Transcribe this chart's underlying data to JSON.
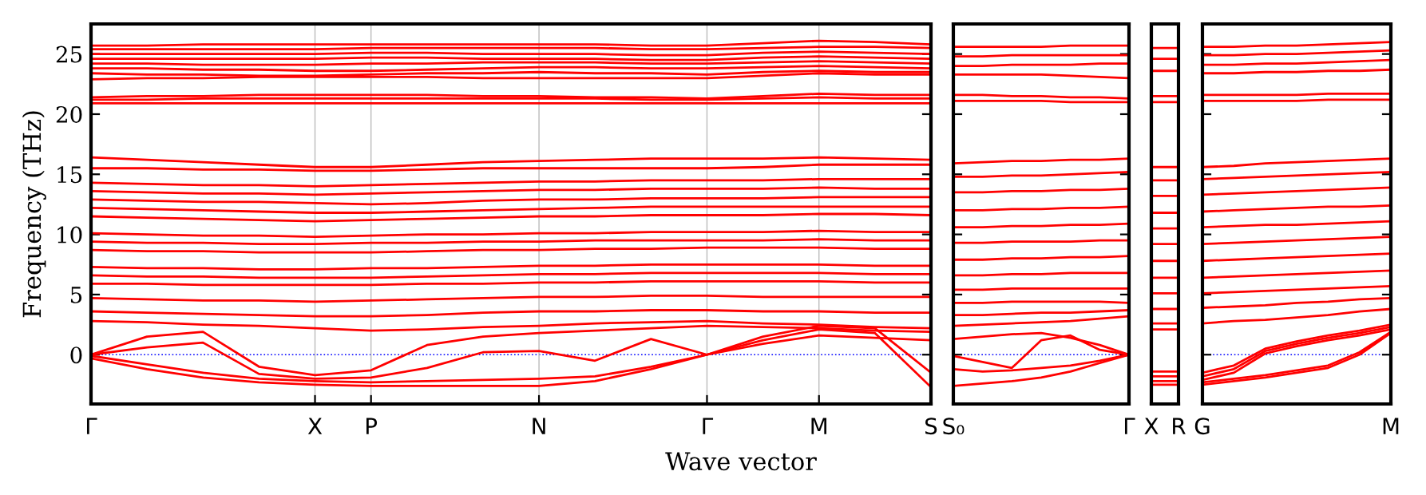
{
  "chart_data": [
    {
      "type": "line",
      "ylabel": "Frequency (THz)",
      "xlabel": "Wave vector",
      "ylim": [
        -4.1,
        27.5
      ],
      "yticks": [
        0,
        5,
        10,
        15,
        20,
        25
      ],
      "categories": [
        "Γ",
        null,
        null,
        null,
        "X",
        "P",
        null,
        null,
        "N",
        null,
        null,
        "Γ",
        null,
        "M",
        null,
        "S"
      ],
      "grid": "x",
      "line_style": "solid",
      "marker": "none",
      "ref_lines": [
        {
          "axis": "y",
          "value": 0,
          "color": "#0000ff",
          "line_style": "dotted"
        }
      ],
      "series": [
        {
          "color": "#ff0000",
          "values": [
            25.7,
            25.7,
            25.8,
            25.8,
            25.8,
            25.8,
            25.8,
            25.8,
            25.8,
            25.8,
            25.7,
            25.7,
            25.9,
            26.1,
            26.0,
            25.8
          ]
        },
        {
          "color": "#ff0000",
          "values": [
            25.4,
            25.4,
            25.4,
            25.4,
            25.4,
            25.5,
            25.5,
            25.5,
            25.5,
            25.5,
            25.4,
            25.4,
            25.5,
            25.6,
            25.6,
            25.5
          ]
        },
        {
          "color": "#ff0000",
          "values": [
            25.0,
            25.0,
            25.0,
            25.0,
            25.0,
            25.1,
            25.1,
            25.0,
            25.0,
            25.0,
            24.9,
            24.9,
            25.1,
            25.2,
            25.1,
            25.0
          ]
        },
        {
          "color": "#ff0000",
          "values": [
            24.6,
            24.6,
            24.6,
            24.6,
            24.6,
            24.7,
            24.7,
            24.6,
            24.6,
            24.6,
            24.5,
            24.5,
            24.7,
            24.8,
            24.7,
            24.6
          ]
        },
        {
          "color": "#ff0000",
          "values": [
            24.2,
            24.2,
            24.1,
            24.1,
            24.1,
            24.2,
            24.2,
            24.3,
            24.3,
            24.3,
            24.2,
            24.2,
            24.3,
            24.4,
            24.3,
            24.2
          ]
        },
        {
          "color": "#ff0000",
          "values": [
            23.8,
            23.8,
            23.7,
            23.7,
            23.6,
            23.6,
            23.7,
            23.8,
            23.9,
            23.9,
            23.8,
            23.8,
            23.9,
            24.0,
            23.9,
            23.8
          ]
        },
        {
          "color": "#ff0000",
          "values": [
            23.4,
            23.3,
            23.3,
            23.2,
            23.2,
            23.3,
            23.4,
            23.4,
            23.5,
            23.4,
            23.4,
            23.3,
            23.5,
            23.6,
            23.5,
            23.5
          ]
        },
        {
          "color": "#ff0000",
          "values": [
            22.9,
            23.0,
            23.0,
            23.1,
            23.1,
            23.1,
            23.1,
            23.0,
            23.0,
            23.0,
            23.0,
            23.0,
            23.2,
            23.4,
            23.3,
            23.3
          ]
        },
        {
          "color": "#ff0000",
          "values": [
            21.4,
            21.5,
            21.5,
            21.6,
            21.6,
            21.6,
            21.6,
            21.5,
            21.5,
            21.4,
            21.4,
            21.3,
            21.5,
            21.7,
            21.6,
            21.6
          ]
        },
        {
          "color": "#ff0000",
          "values": [
            21.2,
            21.2,
            21.3,
            21.3,
            21.3,
            21.3,
            21.3,
            21.3,
            21.3,
            21.3,
            21.2,
            21.2,
            21.3,
            21.4,
            21.3,
            21.3
          ]
        },
        {
          "color": "#ff0000",
          "values": [
            20.9,
            20.9,
            20.9,
            20.9,
            20.9,
            20.9,
            20.9,
            20.9,
            20.9,
            20.9,
            20.9,
            20.9,
            20.9,
            20.9,
            20.9,
            20.9
          ]
        },
        {
          "color": "#ff0000",
          "values": [
            16.4,
            16.2,
            16.0,
            15.8,
            15.6,
            15.6,
            15.8,
            16.0,
            16.1,
            16.2,
            16.3,
            16.3,
            16.3,
            16.4,
            16.3,
            16.2
          ]
        },
        {
          "color": "#ff0000",
          "values": [
            15.5,
            15.5,
            15.4,
            15.4,
            15.3,
            15.3,
            15.4,
            15.5,
            15.5,
            15.5,
            15.5,
            15.5,
            15.6,
            15.8,
            15.8,
            15.8
          ]
        },
        {
          "color": "#ff0000",
          "values": [
            14.3,
            14.2,
            14.1,
            14.1,
            14.0,
            14.1,
            14.2,
            14.3,
            14.4,
            14.4,
            14.5,
            14.5,
            14.5,
            14.6,
            14.6,
            14.6
          ]
        },
        {
          "color": "#ff0000",
          "values": [
            13.6,
            13.5,
            13.4,
            13.4,
            13.3,
            13.4,
            13.5,
            13.6,
            13.7,
            13.7,
            13.8,
            13.8,
            13.8,
            13.9,
            13.8,
            13.8
          ]
        },
        {
          "color": "#ff0000",
          "values": [
            12.9,
            12.8,
            12.7,
            12.7,
            12.6,
            12.5,
            12.6,
            12.8,
            12.9,
            12.9,
            13.0,
            13.0,
            13.0,
            13.1,
            13.1,
            13.1
          ]
        },
        {
          "color": "#ff0000",
          "values": [
            12.2,
            12.1,
            12.0,
            11.9,
            11.8,
            11.8,
            11.9,
            12.0,
            12.1,
            12.2,
            12.3,
            12.3,
            12.3,
            12.3,
            12.3,
            12.3
          ]
        },
        {
          "color": "#ff0000",
          "values": [
            11.5,
            11.4,
            11.3,
            11.2,
            11.1,
            11.2,
            11.3,
            11.4,
            11.5,
            11.5,
            11.6,
            11.6,
            11.6,
            11.7,
            11.7,
            11.6
          ]
        },
        {
          "color": "#ff0000",
          "values": [
            10.1,
            10.0,
            9.9,
            9.9,
            9.8,
            9.9,
            10.0,
            10.0,
            10.1,
            10.1,
            10.2,
            10.2,
            10.2,
            10.3,
            10.2,
            10.2
          ]
        },
        {
          "color": "#ff0000",
          "values": [
            9.4,
            9.3,
            9.3,
            9.2,
            9.2,
            9.3,
            9.3,
            9.4,
            9.4,
            9.5,
            9.5,
            9.5,
            9.5,
            9.6,
            9.5,
            9.5
          ]
        },
        {
          "color": "#ff0000",
          "values": [
            8.7,
            8.6,
            8.6,
            8.5,
            8.5,
            8.5,
            8.6,
            8.7,
            8.7,
            8.8,
            8.8,
            8.9,
            8.9,
            8.9,
            8.8,
            8.8
          ]
        },
        {
          "color": "#ff0000",
          "values": [
            7.3,
            7.2,
            7.2,
            7.1,
            7.1,
            7.2,
            7.2,
            7.3,
            7.4,
            7.4,
            7.5,
            7.5,
            7.5,
            7.5,
            7.4,
            7.4
          ]
        },
        {
          "color": "#ff0000",
          "values": [
            6.6,
            6.5,
            6.5,
            6.4,
            6.4,
            6.4,
            6.5,
            6.6,
            6.7,
            6.7,
            6.8,
            6.8,
            6.8,
            6.8,
            6.7,
            6.7
          ]
        },
        {
          "color": "#ff0000",
          "values": [
            5.9,
            5.9,
            5.8,
            5.8,
            5.8,
            5.8,
            5.9,
            5.9,
            6.0,
            6.0,
            6.1,
            6.1,
            6.1,
            6.1,
            6.0,
            6.0
          ]
        },
        {
          "color": "#ff0000",
          "values": [
            4.7,
            4.6,
            4.5,
            4.5,
            4.4,
            4.5,
            4.6,
            4.7,
            4.8,
            4.8,
            4.9,
            4.9,
            4.8,
            4.8,
            4.8,
            4.8
          ]
        },
        {
          "color": "#ff0000",
          "values": [
            3.6,
            3.5,
            3.4,
            3.3,
            3.2,
            3.2,
            3.3,
            3.5,
            3.6,
            3.6,
            3.7,
            3.7,
            3.6,
            3.6,
            3.5,
            3.5
          ]
        },
        {
          "color": "#ff0000",
          "values": [
            2.8,
            2.7,
            2.5,
            2.4,
            2.2,
            2.0,
            2.1,
            2.3,
            2.4,
            2.6,
            2.7,
            2.8,
            2.6,
            2.5,
            2.3,
            2.2
          ]
        },
        {
          "color": "#ff0000",
          "values": [
            0,
            1.5,
            1.9,
            -1.0,
            -1.7,
            -1.3,
            0.8,
            1.5,
            1.8,
            2.0,
            2.2,
            2.4,
            2.3,
            2.2,
            2.0,
            1.9
          ]
        },
        {
          "color": "#ff0000",
          "values": [
            0,
            0.6,
            1.0,
            -1.6,
            -2.0,
            -1.9,
            -1.1,
            0.2,
            0.3,
            -0.5,
            1.3,
            0,
            1.2,
            2.1,
            1.8,
            -2.7
          ]
        },
        {
          "color": "#ff0000",
          "values": [
            -0.1,
            -0.8,
            -1.5,
            -2.0,
            -2.2,
            -2.3,
            -2.2,
            -2.1,
            -2.0,
            -1.8,
            -1.0,
            0,
            1.5,
            2.4,
            2.2,
            -1.5
          ]
        },
        {
          "color": "#ff0000",
          "values": [
            -0.3,
            -1.2,
            -1.9,
            -2.3,
            -2.5,
            -2.6,
            -2.6,
            -2.6,
            -2.6,
            -2.2,
            -1.2,
            0,
            0.9,
            1.6,
            1.4,
            1.2
          ]
        }
      ]
    },
    {
      "type": "line",
      "ylim": [
        -4.1,
        27.5
      ],
      "yticks": [
        0,
        5,
        10,
        15,
        20,
        25
      ],
      "categories": [
        "S₀",
        null,
        null,
        null,
        null,
        null,
        "Γ"
      ],
      "line_style": "solid",
      "marker": "none",
      "tick_labels": "x",
      "ref_lines": [
        {
          "axis": "y",
          "value": 0,
          "color": "#0000ff",
          "line_style": "dotted"
        }
      ],
      "series": [
        {
          "color": "#ff0000",
          "values": [
            25.6,
            25.6,
            25.6,
            25.6,
            25.7,
            25.7,
            25.7
          ]
        },
        {
          "color": "#ff0000",
          "values": [
            24.8,
            24.8,
            24.9,
            24.9,
            24.9,
            24.9,
            24.9
          ]
        },
        {
          "color": "#ff0000",
          "values": [
            24.0,
            24.0,
            24.1,
            24.1,
            24.1,
            24.2,
            24.2
          ]
        },
        {
          "color": "#ff0000",
          "values": [
            23.3,
            23.3,
            23.3,
            23.3,
            23.2,
            23.1,
            23.0
          ]
        },
        {
          "color": "#ff0000",
          "values": [
            21.6,
            21.6,
            21.5,
            21.5,
            21.4,
            21.4,
            21.3
          ]
        },
        {
          "color": "#ff0000",
          "values": [
            21.1,
            21.1,
            21.1,
            21.1,
            21.0,
            21.0,
            21.0
          ]
        },
        {
          "color": "#ff0000",
          "values": [
            15.9,
            16.0,
            16.1,
            16.1,
            16.2,
            16.2,
            16.3
          ]
        },
        {
          "color": "#ff0000",
          "values": [
            14.8,
            14.8,
            14.9,
            14.9,
            15.0,
            15.1,
            15.2
          ]
        },
        {
          "color": "#ff0000",
          "values": [
            13.5,
            13.5,
            13.6,
            13.6,
            13.7,
            13.7,
            13.8
          ]
        },
        {
          "color": "#ff0000",
          "values": [
            12.0,
            12.0,
            12.1,
            12.1,
            12.2,
            12.2,
            12.3
          ]
        },
        {
          "color": "#ff0000",
          "values": [
            10.6,
            10.6,
            10.7,
            10.7,
            10.8,
            10.8,
            10.9
          ]
        },
        {
          "color": "#ff0000",
          "values": [
            9.3,
            9.3,
            9.4,
            9.4,
            9.4,
            9.5,
            9.5
          ]
        },
        {
          "color": "#ff0000",
          "values": [
            7.9,
            7.9,
            8.0,
            8.0,
            8.1,
            8.1,
            8.2
          ]
        },
        {
          "color": "#ff0000",
          "values": [
            6.6,
            6.6,
            6.7,
            6.7,
            6.8,
            6.8,
            6.8
          ]
        },
        {
          "color": "#ff0000",
          "values": [
            5.4,
            5.4,
            5.5,
            5.5,
            5.5,
            5.5,
            5.5
          ]
        },
        {
          "color": "#ff0000",
          "values": [
            4.3,
            4.3,
            4.4,
            4.4,
            4.4,
            4.4,
            4.3
          ]
        },
        {
          "color": "#ff0000",
          "values": [
            3.3,
            3.3,
            3.4,
            3.5,
            3.5,
            3.6,
            3.7
          ]
        },
        {
          "color": "#ff0000",
          "values": [
            2.4,
            2.5,
            2.6,
            2.7,
            2.8,
            3.0,
            3.2
          ]
        },
        {
          "color": "#ff0000",
          "values": [
            1.3,
            1.5,
            1.7,
            1.8,
            1.4,
            0.8,
            0
          ]
        },
        {
          "color": "#ff0000",
          "values": [
            -0.1,
            -0.6,
            -1.1,
            1.2,
            1.6,
            0.4,
            0
          ]
        },
        {
          "color": "#ff0000",
          "values": [
            -1.2,
            -1.4,
            -1.3,
            -1.1,
            -0.9,
            -0.5,
            0
          ]
        },
        {
          "color": "#ff0000",
          "values": [
            -2.6,
            -2.4,
            -2.2,
            -1.9,
            -1.4,
            -0.7,
            0
          ]
        }
      ]
    },
    {
      "type": "line",
      "ylim": [
        -4.1,
        27.5
      ],
      "yticks": [
        0,
        5,
        10,
        15,
        20,
        25
      ],
      "categories": [
        "X",
        "R"
      ],
      "line_style": "solid",
      "marker": "none",
      "tick_labels": "x",
      "series": [
        {
          "color": "#ff0000",
          "values": [
            25.5,
            25.5
          ]
        },
        {
          "color": "#ff0000",
          "values": [
            24.6,
            24.6
          ]
        },
        {
          "color": "#ff0000",
          "values": [
            23.6,
            23.6
          ]
        },
        {
          "color": "#ff0000",
          "values": [
            21.5,
            21.5
          ]
        },
        {
          "color": "#ff0000",
          "values": [
            21.0,
            21.0
          ]
        },
        {
          "color": "#ff0000",
          "values": [
            15.6,
            15.6
          ]
        },
        {
          "color": "#ff0000",
          "values": [
            14.5,
            14.5
          ]
        },
        {
          "color": "#ff0000",
          "values": [
            13.2,
            13.2
          ]
        },
        {
          "color": "#ff0000",
          "values": [
            11.8,
            11.8
          ]
        },
        {
          "color": "#ff0000",
          "values": [
            10.5,
            10.5
          ]
        },
        {
          "color": "#ff0000",
          "values": [
            9.2,
            9.2
          ]
        },
        {
          "color": "#ff0000",
          "values": [
            7.8,
            7.8
          ]
        },
        {
          "color": "#ff0000",
          "values": [
            6.4,
            6.4
          ]
        },
        {
          "color": "#ff0000",
          "values": [
            5.1,
            5.1
          ]
        },
        {
          "color": "#ff0000",
          "values": [
            3.8,
            3.8
          ]
        },
        {
          "color": "#ff0000",
          "values": [
            2.6,
            2.6
          ]
        },
        {
          "color": "#ff0000",
          "values": [
            2.1,
            2.1
          ]
        },
        {
          "color": "#ff0000",
          "values": [
            -1.4,
            -1.4
          ]
        },
        {
          "color": "#ff0000",
          "values": [
            -1.8,
            -1.8
          ]
        },
        {
          "color": "#ff0000",
          "values": [
            -2.2,
            -2.2
          ]
        },
        {
          "color": "#ff0000",
          "values": [
            -2.5,
            -2.5
          ]
        }
      ]
    },
    {
      "type": "line",
      "ylim": [
        -4.1,
        27.5
      ],
      "yticks": [
        0,
        5,
        10,
        15,
        20,
        25
      ],
      "categories": [
        "G",
        null,
        null,
        null,
        null,
        null,
        "M"
      ],
      "line_style": "solid",
      "marker": "none",
      "tick_labels": "x",
      "ref_lines": [
        {
          "axis": "y",
          "value": 0,
          "color": "#0000ff",
          "line_style": "dotted"
        }
      ],
      "series": [
        {
          "color": "#ff0000",
          "values": [
            25.6,
            25.6,
            25.7,
            25.7,
            25.8,
            25.9,
            26.0
          ]
        },
        {
          "color": "#ff0000",
          "values": [
            24.9,
            24.9,
            25.0,
            25.0,
            25.1,
            25.2,
            25.3
          ]
        },
        {
          "color": "#ff0000",
          "values": [
            24.1,
            24.1,
            24.2,
            24.2,
            24.3,
            24.4,
            24.5
          ]
        },
        {
          "color": "#ff0000",
          "values": [
            23.4,
            23.4,
            23.5,
            23.5,
            23.6,
            23.6,
            23.7
          ]
        },
        {
          "color": "#ff0000",
          "values": [
            21.6,
            21.6,
            21.6,
            21.6,
            21.7,
            21.7,
            21.7
          ]
        },
        {
          "color": "#ff0000",
          "values": [
            21.1,
            21.1,
            21.1,
            21.1,
            21.2,
            21.2,
            21.2
          ]
        },
        {
          "color": "#ff0000",
          "values": [
            15.6,
            15.7,
            15.9,
            16.0,
            16.1,
            16.2,
            16.3
          ]
        },
        {
          "color": "#ff0000",
          "values": [
            14.6,
            14.7,
            14.8,
            14.9,
            15.0,
            15.1,
            15.2
          ]
        },
        {
          "color": "#ff0000",
          "values": [
            13.3,
            13.4,
            13.5,
            13.6,
            13.7,
            13.8,
            13.9
          ]
        },
        {
          "color": "#ff0000",
          "values": [
            11.9,
            12.0,
            12.1,
            12.2,
            12.3,
            12.3,
            12.4
          ]
        },
        {
          "color": "#ff0000",
          "values": [
            10.6,
            10.7,
            10.8,
            10.8,
            10.9,
            11.0,
            11.1
          ]
        },
        {
          "color": "#ff0000",
          "values": [
            9.2,
            9.3,
            9.4,
            9.5,
            9.6,
            9.7,
            9.8
          ]
        },
        {
          "color": "#ff0000",
          "values": [
            7.8,
            7.9,
            8.0,
            8.1,
            8.2,
            8.3,
            8.4
          ]
        },
        {
          "color": "#ff0000",
          "values": [
            6.4,
            6.5,
            6.6,
            6.7,
            6.8,
            6.9,
            7.0
          ]
        },
        {
          "color": "#ff0000",
          "values": [
            5.1,
            5.2,
            5.3,
            5.4,
            5.5,
            5.6,
            5.7
          ]
        },
        {
          "color": "#ff0000",
          "values": [
            3.9,
            4.0,
            4.1,
            4.3,
            4.4,
            4.6,
            4.7
          ]
        },
        {
          "color": "#ff0000",
          "values": [
            2.6,
            2.8,
            2.9,
            3.1,
            3.3,
            3.6,
            3.8
          ]
        },
        {
          "color": "#ff0000",
          "values": [
            -1.5,
            -0.9,
            0.5,
            1.1,
            1.6,
            2.0,
            2.5
          ]
        },
        {
          "color": "#ff0000",
          "values": [
            -1.8,
            -1.2,
            0.3,
            0.9,
            1.4,
            1.8,
            2.3
          ]
        },
        {
          "color": "#ff0000",
          "values": [
            -2.1,
            -1.5,
            0.1,
            0.7,
            1.2,
            1.6,
            2.1
          ]
        },
        {
          "color": "#ff0000",
          "values": [
            -2.3,
            -2.0,
            -1.7,
            -1.3,
            -0.9,
            0.2,
            1.9
          ]
        },
        {
          "color": "#ff0000",
          "values": [
            -2.5,
            -2.2,
            -1.9,
            -1.5,
            -1.1,
            0.0,
            1.8
          ]
        }
      ]
    }
  ]
}
